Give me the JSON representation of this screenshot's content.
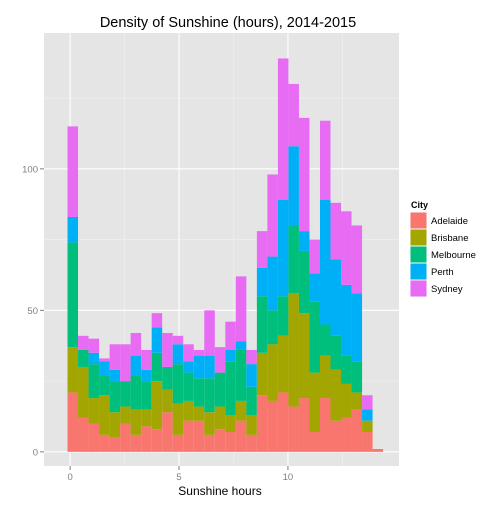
{
  "chart_data": {
    "type": "bar",
    "stacked": true,
    "title": "Density of Sunshine (hours), 2014-2015",
    "xlabel": "Sunshine hours",
    "ylabel": "",
    "xlim": [
      -1.2,
      15.1
    ],
    "ylim": [
      -5,
      148
    ],
    "x_ticks": [
      0,
      5,
      10
    ],
    "x_tick_labels": [
      "0",
      "5",
      "10"
    ],
    "y_ticks": [
      0,
      50,
      100
    ],
    "y_tick_labels": [
      "0",
      "50",
      "100"
    ],
    "grid": true,
    "legend_position": "right",
    "legend_title": "City",
    "bin_width": 0.483,
    "bins_start": [
      -0.12,
      0.363,
      0.846,
      1.329,
      1.812,
      2.295,
      2.778,
      3.261,
      3.744,
      4.227,
      4.71,
      5.193,
      5.676,
      6.159,
      6.642,
      7.125,
      7.608,
      8.091,
      8.574,
      9.057,
      9.54,
      10.023,
      10.506,
      10.989,
      11.472,
      11.955,
      12.438,
      12.921,
      13.404,
      13.887
    ],
    "series": [
      {
        "name": "Adelaide",
        "color": "#F8766D",
        "values": [
          21,
          12,
          10,
          6,
          5,
          10,
          6,
          9,
          8,
          14,
          6,
          11,
          11,
          6,
          8,
          7,
          11,
          6,
          20,
          18,
          21,
          16,
          19,
          7,
          19,
          11,
          12,
          15,
          7,
          1
        ]
      },
      {
        "name": "Brisbane",
        "color": "#A3A500",
        "values": [
          16,
          18,
          9,
          14,
          9,
          6,
          9,
          6,
          17,
          8,
          11,
          7,
          5,
          8,
          8,
          6,
          7,
          7,
          15,
          20,
          20,
          40,
          30,
          21,
          15,
          18,
          12,
          6,
          4,
          0
        ]
      },
      {
        "name": "Melbourne",
        "color": "#00BF7D",
        "values": [
          37,
          6,
          12,
          7,
          11,
          9,
          12,
          10,
          10,
          8,
          14,
          10,
          10,
          12,
          12,
          19,
          18,
          10,
          20,
          12,
          14,
          24,
          22,
          25,
          11,
          12,
          10,
          11,
          0,
          0
        ]
      },
      {
        "name": "Perth",
        "color": "#00B0F6",
        "values": [
          9,
          0,
          4,
          5,
          4,
          0,
          7,
          4,
          9,
          0,
          7,
          4,
          8,
          8,
          0,
          4,
          3,
          8,
          10,
          19,
          34,
          28,
          7,
          10,
          44,
          27,
          25,
          24,
          4,
          0
        ]
      },
      {
        "name": "Sydney",
        "color": "#E76BF3",
        "values": [
          32,
          5,
          5,
          1,
          9,
          13,
          8,
          7,
          5,
          12,
          3,
          6,
          2,
          16,
          9,
          10,
          23,
          5,
          13,
          29,
          50,
          22,
          40,
          12,
          28,
          20,
          26,
          24,
          5,
          0
        ]
      }
    ]
  }
}
